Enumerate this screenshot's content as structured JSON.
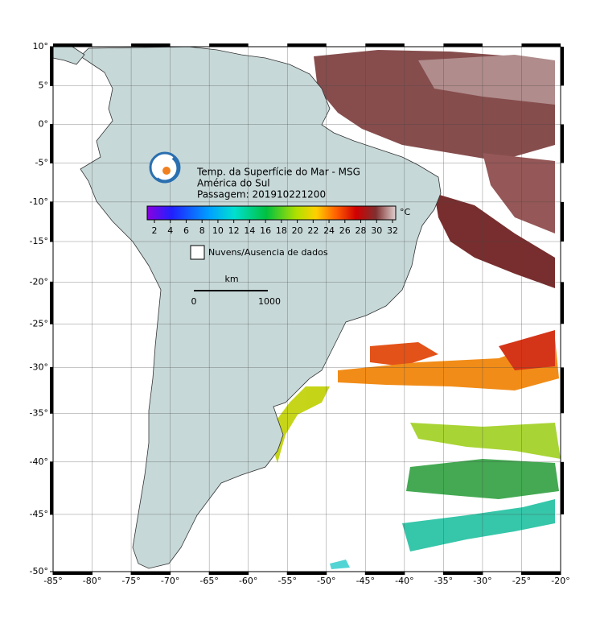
{
  "map": {
    "title_lines": [
      "Temp. da Superfície do Mar - MSG",
      "América do Sul",
      "Passagem: 201910221200"
    ],
    "colorbar": {
      "unit": "°C",
      "ticks": [
        2,
        4,
        6,
        8,
        10,
        12,
        14,
        16,
        18,
        20,
        22,
        24,
        26,
        28,
        30,
        32
      ]
    },
    "legend": "Nuvens/Ausencia de dados",
    "scale_bar": {
      "unit": "km",
      "start": "0",
      "end": "1000"
    },
    "lon_ticks": [
      {
        "value": -85,
        "label": "-85°"
      },
      {
        "value": -80,
        "label": "-80°"
      },
      {
        "value": -75,
        "label": "-75°"
      },
      {
        "value": -70,
        "label": "-70°"
      },
      {
        "value": -65,
        "label": "-65°"
      },
      {
        "value": -60,
        "label": "-60°"
      },
      {
        "value": -55,
        "label": "-55°"
      },
      {
        "value": -50,
        "label": "-50°"
      },
      {
        "value": -45,
        "label": "-45°"
      },
      {
        "value": -40,
        "label": "-40°"
      },
      {
        "value": -35,
        "label": "-35°"
      },
      {
        "value": -30,
        "label": "-30°"
      },
      {
        "value": -25,
        "label": "-25°"
      },
      {
        "value": -20,
        "label": "-20°"
      }
    ],
    "lat_ticks": [
      {
        "value": 10,
        "label": "10°"
      },
      {
        "value": 5,
        "label": "5°"
      },
      {
        "value": 0,
        "label": "0°"
      },
      {
        "value": -5,
        "label": "-5°"
      },
      {
        "value": -10,
        "label": "-10°"
      },
      {
        "value": -15,
        "label": "-15°"
      },
      {
        "value": -20,
        "label": "-20°"
      },
      {
        "value": -25,
        "label": "-25°"
      },
      {
        "value": -30,
        "label": "-30°"
      },
      {
        "value": -35,
        "label": "-35°"
      },
      {
        "value": -40,
        "label": "-40°"
      },
      {
        "value": -45,
        "label": "-45°"
      },
      {
        "value": -50,
        "label": "-50°"
      }
    ]
  }
}
